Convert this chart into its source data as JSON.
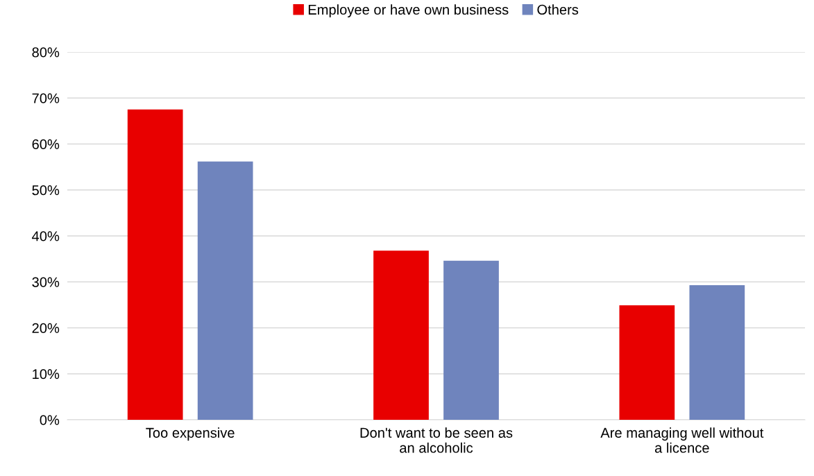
{
  "chart_data": {
    "type": "bar",
    "categories": [
      "Too expensive",
      "Don't want to be seen as an alcoholic",
      "Are managing well without a licence"
    ],
    "series": [
      {
        "name": "Employee or have own business",
        "color": "#e80000",
        "values": [
          67.5,
          36.8,
          24.9
        ]
      },
      {
        "name": "Others",
        "color": "#6f84bd",
        "values": [
          56.2,
          34.6,
          29.3
        ]
      }
    ],
    "ylim": [
      0,
      80
    ],
    "yticks": [
      {
        "value": 0,
        "label": "0%"
      },
      {
        "value": 10,
        "label": "10%"
      },
      {
        "value": 20,
        "label": "20%"
      },
      {
        "value": 30,
        "label": "30%"
      },
      {
        "value": 40,
        "label": "40%"
      },
      {
        "value": 50,
        "label": "50%"
      },
      {
        "value": 60,
        "label": "60%"
      },
      {
        "value": 70,
        "label": "70%"
      },
      {
        "value": 80,
        "label": "80%"
      }
    ],
    "grid": "y",
    "legend": "top"
  }
}
